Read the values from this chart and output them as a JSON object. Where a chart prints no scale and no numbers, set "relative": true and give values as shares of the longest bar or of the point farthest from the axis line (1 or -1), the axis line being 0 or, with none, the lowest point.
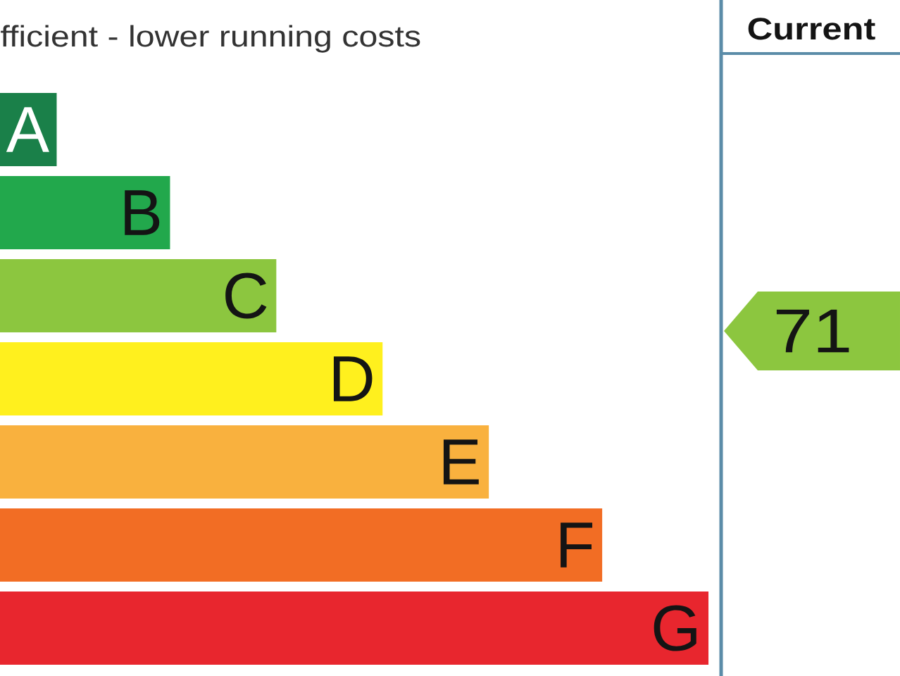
{
  "chart_data": {
    "type": "bar",
    "orientation": "horizontal",
    "relative": true,
    "title": "fficient - lower running costs",
    "categories": [
      "A",
      "B",
      "C",
      "D",
      "E",
      "F",
      "G"
    ],
    "values": [
      0.08,
      0.24,
      0.39,
      0.54,
      0.69,
      0.85,
      1
    ],
    "colors": [
      "#1a8049",
      "#22a84c",
      "#8cc63f",
      "#fff01e",
      "#f9b13e",
      "#f26d24",
      "#e8262e"
    ],
    "annotations": [
      "Current",
      "71"
    ]
  }
}
